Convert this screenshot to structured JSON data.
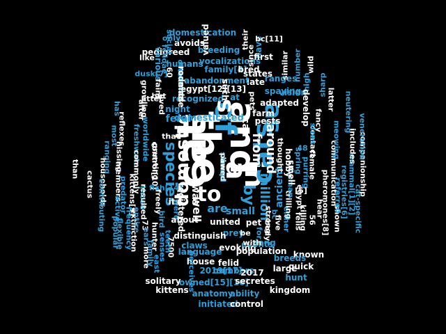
{
  "palette": {
    "background": "#000000",
    "white": "#ffffff",
    "blue": "#2e9fd8"
  },
  "words": [
    {
      "text": "the",
      "color": "white",
      "rot": 90
    },
    {
      "text": "cat",
      "color": "white",
      "rot": -90
    },
    {
      "text": "and",
      "color": "white",
      "rot": 90
    },
    {
      "text": "of",
      "color": "blue",
      "rot": 90
    },
    {
      "text": "a",
      "color": "white",
      "rot": 90
    },
    {
      "text": "in",
      "color": "white",
      "rot": 90
    },
    {
      "text": "cats",
      "color": "blue",
      "rot": -90
    },
    {
      "text": "to",
      "color": "white",
      "rot": 0
    },
    {
      "text": "is",
      "color": "white",
      "rot": -90
    },
    {
      "text": "as",
      "color": "blue",
      "rot": 90
    },
    {
      "text": "domestic",
      "color": "white",
      "rot": -90
    },
    {
      "text": "species",
      "color": "blue",
      "rot": 90
    },
    {
      "text": "by",
      "color": "blue",
      "rot": 90
    },
    {
      "text": "from",
      "color": "white",
      "rot": 90
    },
    {
      "text": "around",
      "color": "white",
      "rot": 90
    },
    {
      "text": "are",
      "color": "blue",
      "rot": 0
    },
    {
      "text": "was",
      "color": "white",
      "rot": 90
    },
    {
      "text": "million",
      "color": "blue",
      "rot": 90
    },
    {
      "text": "small",
      "color": "blue",
      "rot": 0
    },
    {
      "text": "ancient",
      "color": "blue",
      "rot": -90
    },
    {
      "text": "domesticated",
      "color": "blue",
      "rot": 0
    },
    {
      "text": "feral",
      "color": "blue",
      "rot": 0
    },
    {
      "text": "well",
      "color": "white",
      "rot": 90
    },
    {
      "text": "can",
      "color": "white",
      "rot": 90
    },
    {
      "text": "domestication",
      "color": "blue",
      "rot": 0
    },
    {
      "text": "pedigreed",
      "color": "white",
      "rot": 0
    },
    {
      "text": "breeding",
      "color": "blue",
      "rot": 0
    },
    {
      "text": "vocalizations",
      "color": "blue",
      "rot": 0
    },
    {
      "text": "humans",
      "color": "blue",
      "rot": 0
    },
    {
      "text": "family[4]",
      "color": "blue",
      "rot": 0
    },
    {
      "text": "bred",
      "color": "white",
      "rot": 0
    },
    {
      "text": "states",
      "color": "white",
      "rot": 0
    },
    {
      "text": "late",
      "color": "white",
      "rot": 0
    },
    {
      "text": "abandonment",
      "color": "blue",
      "rot": 0
    },
    {
      "text": "egypt[12][13]",
      "color": "white",
      "rot": 0
    },
    {
      "text": "ranges",
      "color": "blue",
      "rot": 0
    },
    {
      "text": "spaying",
      "color": "blue",
      "rot": 0
    },
    {
      "text": "recognized",
      "color": "blue",
      "rot": 0
    },
    {
      "text": "vision",
      "color": "blue",
      "rot": 0
    },
    {
      "text": "night",
      "color": "blue",
      "rot": 0
    },
    {
      "text": "adapted",
      "color": "white",
      "rot": 0
    },
    {
      "text": "farm",
      "color": "white",
      "rot": 0
    },
    {
      "text": "pests",
      "color": "white",
      "rot": 0
    },
    {
      "text": "hobby",
      "color": "white",
      "rot": 90
    },
    {
      "text": "united",
      "color": "white",
      "rot": 0
    },
    {
      "text": "pet",
      "color": "white",
      "rot": 0
    },
    {
      "text": "prey",
      "color": "blue",
      "rot": 0
    },
    {
      "text": "evoking",
      "color": "white",
      "rot": 0
    },
    {
      "text": "distinguish",
      "color": "white",
      "rot": 0
    },
    {
      "text": "events",
      "color": "blue",
      "rot": 0
    },
    {
      "text": "claws",
      "color": "blue",
      "rot": 0
    },
    {
      "text": "long",
      "color": "blue",
      "rot": 0
    },
    {
      "text": "language",
      "color": "blue",
      "rot": 0
    },
    {
      "text": "population",
      "color": "white",
      "rot": 0
    },
    {
      "text": "known",
      "color": "white",
      "rot": 0
    },
    {
      "text": "house",
      "color": "white",
      "rot": 0
    },
    {
      "text": "felid",
      "color": "white",
      "rot": 0
    },
    {
      "text": "numbers",
      "color": "blue",
      "rot": 0
    },
    {
      "text": "2019[17]",
      "color": "blue",
      "rot": 0
    },
    {
      "text": "2017",
      "color": "white",
      "rot": 0
    },
    {
      "text": "quick",
      "color": "white",
      "rot": 0
    },
    {
      "text": "large",
      "color": "white",
      "rot": 0
    },
    {
      "text": "breeds",
      "color": "blue",
      "rot": 0
    },
    {
      "text": "solitary",
      "color": "white",
      "rot": 0
    },
    {
      "text": "owned[15][16]",
      "color": "blue",
      "rot": 0
    },
    {
      "text": "secretes",
      "color": "white",
      "rot": 0
    },
    {
      "text": "hunt",
      "color": "blue",
      "rot": 0
    },
    {
      "text": "kittens",
      "color": "white",
      "rot": 0
    },
    {
      "text": "anatomy",
      "color": "blue",
      "rot": 0
    },
    {
      "text": "ability",
      "color": "blue",
      "rot": 0
    },
    {
      "text": "kingdom",
      "color": "white",
      "rot": 0
    },
    {
      "text": "initiated",
      "color": "blue",
      "rot": 0
    },
    {
      "text": "control",
      "color": "white",
      "rot": 0
    },
    {
      "text": "communication",
      "color": "white",
      "rot": 90
    },
    {
      "text": "companionship",
      "color": "white",
      "rot": 90
    },
    {
      "text": "cat-specific",
      "color": "blue",
      "rot": 90
    },
    {
      "text": "mammal[1][2]",
      "color": "blue",
      "rot": 90
    },
    {
      "text": "veneration",
      "color": "blue",
      "rot": 90
    },
    {
      "text": "includes",
      "color": "white",
      "rot": 90
    },
    {
      "text": "shown",
      "color": "white",
      "rot": 90
    },
    {
      "text": "registries[6]",
      "color": "blue",
      "rot": 90
    },
    {
      "text": "referred",
      "color": "blue",
      "rot": 90
    },
    {
      "text": "pheromones[8]",
      "color": "white",
      "rot": 90
    },
    {
      "text": "purring",
      "color": "blue",
      "rot": 90
    },
    {
      "text": "female",
      "color": "white",
      "rot": 90
    },
    {
      "text": "fancy",
      "color": "white",
      "rot": 90
    },
    {
      "text": "neutering",
      "color": "blue",
      "rot": 90
    },
    {
      "text": "meowing",
      "color": "blue",
      "rot": 90
    },
    {
      "text": "killing",
      "color": "white",
      "rot": 90
    },
    {
      "text": "hear",
      "color": "white",
      "rot": 90
    },
    {
      "text": "latter",
      "color": "white",
      "rot": 90
    },
    {
      "text": "wild",
      "color": "white",
      "rot": -90
    },
    {
      "text": "number",
      "color": "blue",
      "rot": -90
    },
    {
      "text": "high",
      "color": "blue",
      "rot": -90
    },
    {
      "text": "sharp",
      "color": "blue",
      "rot": -90
    },
    {
      "text": "similar",
      "color": "white",
      "rot": -90
    },
    {
      "text": "have",
      "color": "blue",
      "rot": -90
    },
    {
      "text": "first",
      "color": "white",
      "rot": 0
    },
    {
      "text": "bc[11]",
      "color": "white",
      "rot": 0
    },
    {
      "text": "their",
      "color": "white",
      "rot": -90
    },
    {
      "text": "since",
      "color": "white",
      "rot": -90
    },
    {
      "text": "valued",
      "color": "white",
      "rot": -90
    },
    {
      "text": "avoids",
      "color": "white",
      "rot": 0
    },
    {
      "text": "only",
      "color": "blue",
      "rot": 0
    },
    {
      "text": "social",
      "color": "blue",
      "rot": 90
    },
    {
      "text": "felidae",
      "color": "blue",
      "rot": 90
    },
    {
      "text": "various",
      "color": "blue",
      "rot": 90
    },
    {
      "text": "like",
      "color": "white",
      "rot": 0
    },
    {
      "text": "dusk[7]",
      "color": "blue",
      "rot": 0
    },
    {
      "text": "sounds",
      "color": "blue",
      "rot": 90
    },
    {
      "text": "often",
      "color": "blue",
      "rot": 90
    },
    {
      "text": "60",
      "color": "white",
      "rot": 90
    },
    {
      "text": "faint",
      "color": "white",
      "rot": 90
    },
    {
      "text": "rodents",
      "color": "white",
      "rot": 90
    },
    {
      "text": "made",
      "color": "white",
      "rot": 90
    },
    {
      "text": "but",
      "color": "white",
      "rot": 0
    },
    {
      "text": "litter",
      "color": "white",
      "rot": 0
    },
    {
      "text": "growling",
      "color": "white",
      "rot": 90
    },
    {
      "text": "after",
      "color": "white",
      "rot": 90
    },
    {
      "text": "has",
      "color": "blue",
      "rot": 90
    },
    {
      "text": "lived",
      "color": "white",
      "rot": 90
    },
    {
      "text": "reflexes",
      "color": "white",
      "rot": 90
    },
    {
      "text": "most",
      "color": "blue",
      "rot": 90
    },
    {
      "text": "hissing",
      "color": "white",
      "rot": 90
    },
    {
      "text": "ranging",
      "color": "blue",
      "rot": 90
    },
    {
      "text": "than",
      "color": "white",
      "rot": 90
    },
    {
      "text": "cactus",
      "color": "white",
      "rot": 90
    },
    {
      "text": "members",
      "color": "white",
      "rot": 90
    },
    {
      "text": "households",
      "color": "white",
      "rot": 90
    },
    {
      "text": "contributing",
      "color": "blue",
      "rot": 90
    },
    {
      "text": "predator",
      "color": "blue",
      "rot": 90
    },
    {
      "text": "freshwater",
      "color": "blue",
      "rot": 90
    },
    {
      "text": "grunting",
      "color": "white",
      "rot": 90
    },
    {
      "text": "worldwide",
      "color": "blue",
      "rot": 90
    },
    {
      "text": "commonly",
      "color": "white",
      "rot": 90
    },
    {
      "text": "control[10]",
      "color": "white",
      "rot": 90
    },
    {
      "text": "those",
      "color": "blue",
      "rot": 90
    },
    {
      "text": "resulted",
      "color": "white",
      "rot": 90
    },
    {
      "text": "freely",
      "color": "white",
      "rot": 90
    },
    {
      "text": "extinction",
      "color": "white",
      "rot": 90
    },
    {
      "text": "kittens[9]",
      "color": "white",
      "rot": 90
    },
    {
      "text": "active",
      "color": "blue",
      "rot": 90
    },
    {
      "text": "popular",
      "color": "blue",
      "rot": 90
    },
    {
      "text": "flexible",
      "color": "blue",
      "rot": 90
    },
    {
      "text": "73",
      "color": "white",
      "rot": 90
    },
    {
      "text": "entire",
      "color": "blue",
      "rot": 90
    },
    {
      "text": "ears",
      "color": "blue",
      "rot": 90
    },
    {
      "text": "hunter",
      "color": "white",
      "rot": 90
    },
    {
      "text": "bird",
      "color": "blue",
      "rot": 90
    },
    {
      "text": "more",
      "color": "white",
      "rot": 90
    },
    {
      "text": "senses",
      "color": "blue",
      "rot": 90
    },
    {
      "text": "frequency",
      "color": "blue",
      "rot": 90
    },
    {
      "text": "east",
      "color": "blue",
      "rot": 90
    },
    {
      "text": "family",
      "color": "blue",
      "rot": 90
    },
    {
      "text": "perceives",
      "color": "blue",
      "rot": 90
    },
    {
      "text": "7500",
      "color": "white",
      "rot": 90
    },
    {
      "text": "fish[14]",
      "color": "blue",
      "rot": 0
    },
    {
      "text": "teeth",
      "color": "blue",
      "rot": 90
    },
    {
      "text": "its",
      "color": "white",
      "rot": 0
    },
    {
      "text": "were",
      "color": "blue",
      "rot": 90
    },
    {
      "text": "registered",
      "color": "white",
      "rot": 90
    },
    {
      "text": "two",
      "color": "white",
      "rot": 90
    },
    {
      "text": "about",
      "color": "white",
      "rot": 0
    },
    {
      "text": "such",
      "color": "white",
      "rot": 90
    },
    {
      "text": "at",
      "color": "blue",
      "rot": 0
    },
    {
      "text": "that",
      "color": "white",
      "rot": 0
    },
    {
      "text": "pets",
      "color": "white",
      "rot": 90
    },
    {
      "text": "with",
      "color": "white",
      "rot": 0
    },
    {
      "text": "be",
      "color": "white",
      "rot": 0
    },
    {
      "text": "for",
      "color": "blue",
      "rot": 90
    },
    {
      "text": "body",
      "color": "white",
      "rot": 90
    },
    {
      "text": "five",
      "color": "white",
      "rot": 90
    },
    {
      "text": "either",
      "color": "blue",
      "rot": 90
    },
    {
      "text": "bc",
      "color": "blue",
      "rot": 90
    },
    {
      "text": "strong",
      "color": "white",
      "rot": 90
    },
    {
      "text": "trilling",
      "color": "white",
      "rot": 90
    },
    {
      "text": "felis",
      "color": "white",
      "rot": 90
    },
    {
      "text": "egypt",
      "color": "white",
      "rot": 90
    },
    {
      "text": "human",
      "color": "blue",
      "rot": 90
    },
    {
      "text": "spring",
      "color": "blue",
      "rot": 90
    },
    {
      "text": "thought",
      "color": "white",
      "rot": 90
    },
    {
      "text": "develop",
      "color": "white",
      "rot": 90
    },
    {
      "text": "smell",
      "color": "white",
      "rot": 90
    },
    {
      "text": "contact",
      "color": "white",
      "rot": 90
    },
    {
      "text": "sizes",
      "color": "blue",
      "rot": 90
    },
    {
      "text": "48",
      "color": "blue",
      "rot": 0
    },
    {
      "text": "[5]",
      "color": "white",
      "rot": 0
    },
    {
      "text": "56",
      "color": "white",
      "rot": 90
    },
    {
      "text": "lives",
      "color": "white",
      "rot": 90
    },
    {
      "text": "away",
      "color": "blue",
      "rot": 90
    },
    {
      "text": "second",
      "color": "blue",
      "rot": 90
    },
    {
      "text": "pawed",
      "color": "white",
      "rot": 90
    }
  ]
}
